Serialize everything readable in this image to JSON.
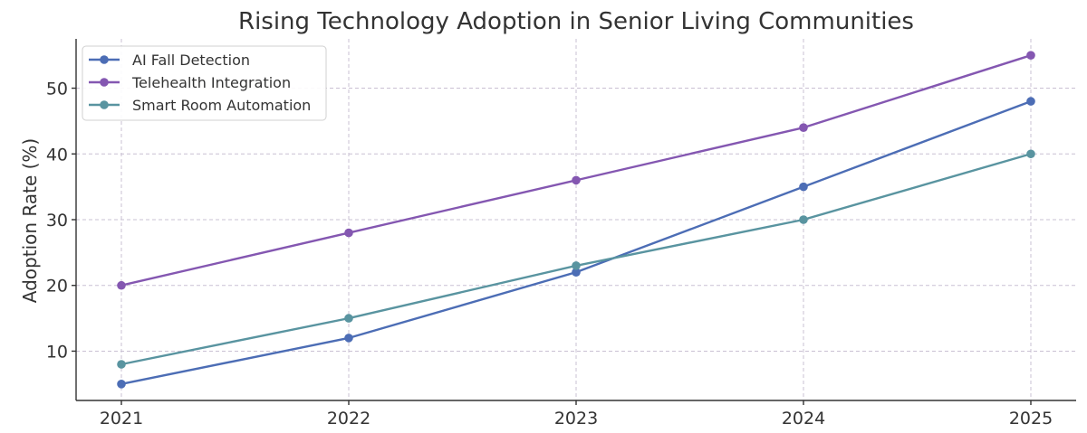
{
  "chart_data": {
    "type": "line",
    "title": "Rising Technology Adoption in Senior Living Communities",
    "xlabel": "",
    "ylabel": "Adoption Rate (%)",
    "x": [
      "2021",
      "2022",
      "2023",
      "2024",
      "2025"
    ],
    "yticks": [
      "10",
      "20",
      "30",
      "40",
      "50"
    ],
    "ylim": [
      2.5,
      57.5
    ],
    "grid": true,
    "legend_position": "top-left",
    "series": [
      {
        "name": "AI Fall Detection",
        "values": [
          5,
          12,
          22,
          35,
          48
        ],
        "color": "#4c6db5"
      },
      {
        "name": "Telehealth Integration",
        "values": [
          20,
          28,
          36,
          44,
          55
        ],
        "color": "#8457b1"
      },
      {
        "name": "Smart Room Automation",
        "values": [
          8,
          15,
          23,
          30,
          40
        ],
        "color": "#5994a0"
      }
    ]
  }
}
